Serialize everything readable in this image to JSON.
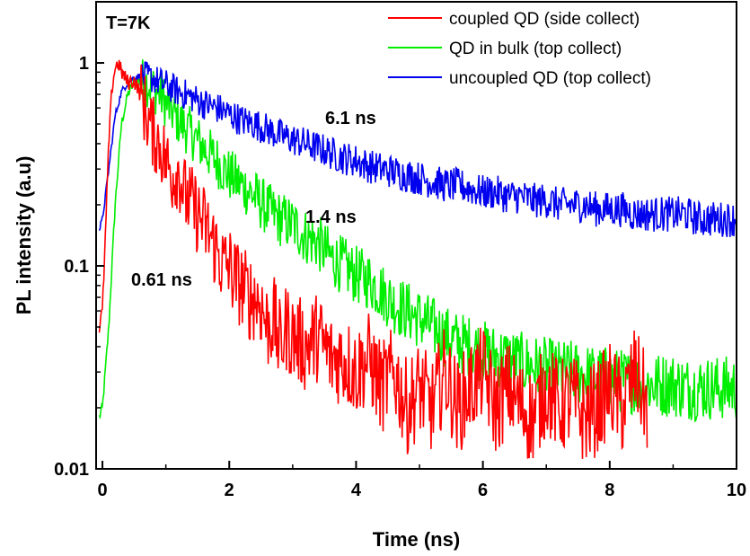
{
  "chart_data": {
    "type": "line",
    "title": "",
    "xlabel": "Time (ns)",
    "ylabel": "PL intensity (a.u)",
    "xlim": [
      -0.1,
      10
    ],
    "ylim": [
      0.01,
      2
    ],
    "yscale": "log",
    "grid": false,
    "legend_position": "top-right",
    "x_ticks": [
      0,
      2,
      4,
      6,
      8,
      10
    ],
    "x_tick_labels": [
      "0",
      "2",
      "4",
      "6",
      "8",
      "10"
    ],
    "y_ticks": [
      0.01,
      0.1,
      1
    ],
    "y_tick_labels": [
      "0.01",
      "0.1",
      "1"
    ],
    "annotations": {
      "temperature": "T=7K",
      "lifetime_blue": "6.1 ns",
      "lifetime_green": "1.4 ns",
      "lifetime_red": "0.61 ns"
    },
    "series": [
      {
        "name": "coupled QD (side collect)",
        "color": "#ff0000",
        "x": [
          -0.05,
          0.0,
          0.05,
          0.1,
          0.15,
          0.2,
          0.25,
          0.3,
          0.35,
          0.4,
          0.5,
          0.6,
          0.7,
          0.8,
          0.9,
          1.0,
          1.1,
          1.2,
          1.3,
          1.4,
          1.5,
          1.6,
          1.7,
          1.8,
          1.9,
          2.0,
          2.1,
          2.2,
          2.3,
          2.4,
          2.5,
          2.6,
          2.7,
          2.8,
          2.9,
          3.0,
          3.2,
          3.4,
          3.6,
          3.8,
          4.0,
          4.2,
          4.4,
          4.6,
          4.8,
          5.0,
          5.2,
          5.4,
          5.6,
          5.8,
          6.0,
          6.2,
          6.4,
          6.6,
          6.8,
          7.0,
          7.2,
          7.4,
          7.6,
          7.8,
          8.0,
          8.2,
          8.4,
          8.6
        ],
        "values": [
          0.05,
          0.06,
          0.15,
          0.4,
          0.75,
          0.95,
          1.0,
          0.9,
          0.85,
          0.8,
          0.82,
          0.7,
          0.55,
          0.45,
          0.4,
          0.33,
          0.28,
          0.3,
          0.22,
          0.2,
          0.18,
          0.16,
          0.14,
          0.12,
          0.1,
          0.1,
          0.085,
          0.08,
          0.07,
          0.07,
          0.065,
          0.05,
          0.055,
          0.04,
          0.05,
          0.045,
          0.04,
          0.045,
          0.035,
          0.035,
          0.03,
          0.035,
          0.025,
          0.03,
          0.02,
          0.025,
          0.02,
          0.03,
          0.02,
          0.025,
          0.03,
          0.02,
          0.025,
          0.02,
          0.018,
          0.025,
          0.02,
          0.022,
          0.018,
          0.02,
          0.025,
          0.02,
          0.03,
          0.02
        ]
      },
      {
        "name": "QD in bulk (top collect)",
        "color": "#00ee00",
        "x": [
          -0.05,
          0.0,
          0.1,
          0.2,
          0.3,
          0.4,
          0.5,
          0.6,
          0.7,
          0.8,
          0.9,
          1.0,
          1.2,
          1.4,
          1.6,
          1.8,
          2.0,
          2.2,
          2.4,
          2.6,
          2.8,
          3.0,
          3.2,
          3.4,
          3.6,
          3.8,
          4.0,
          4.2,
          4.4,
          4.6,
          4.8,
          5.0,
          5.2,
          5.4,
          5.6,
          5.8,
          6.0,
          6.2,
          6.4,
          6.6,
          6.8,
          7.0,
          7.2,
          7.4,
          7.6,
          7.8,
          8.0,
          8.2,
          8.4,
          8.6,
          8.8,
          9.0,
          9.2,
          9.4,
          9.6,
          9.8,
          10.0
        ],
        "values": [
          0.018,
          0.02,
          0.05,
          0.2,
          0.5,
          0.7,
          0.8,
          0.82,
          0.8,
          0.75,
          0.7,
          0.63,
          0.52,
          0.45,
          0.38,
          0.33,
          0.28,
          0.25,
          0.22,
          0.19,
          0.17,
          0.16,
          0.14,
          0.13,
          0.11,
          0.1,
          0.09,
          0.085,
          0.075,
          0.065,
          0.06,
          0.055,
          0.05,
          0.045,
          0.042,
          0.04,
          0.038,
          0.036,
          0.035,
          0.033,
          0.032,
          0.031,
          0.03,
          0.03,
          0.029,
          0.028,
          0.028,
          0.027,
          0.027,
          0.026,
          0.026,
          0.026,
          0.025,
          0.025,
          0.025,
          0.025,
          0.025
        ]
      },
      {
        "name": "uncoupled QD (top collect)",
        "color": "#0000ee",
        "x": [
          -0.05,
          0.0,
          0.1,
          0.2,
          0.3,
          0.4,
          0.5,
          0.6,
          0.7,
          0.8,
          0.9,
          1.0,
          1.2,
          1.4,
          1.6,
          1.8,
          2.0,
          2.2,
          2.4,
          2.6,
          2.8,
          3.0,
          3.2,
          3.4,
          3.6,
          3.8,
          4.0,
          4.2,
          4.4,
          4.6,
          4.8,
          5.0,
          5.2,
          5.4,
          5.6,
          5.8,
          6.0,
          6.2,
          6.4,
          6.6,
          6.8,
          7.0,
          7.2,
          7.4,
          7.6,
          7.8,
          8.0,
          8.2,
          8.4,
          8.6,
          8.8,
          9.0,
          9.2,
          9.4,
          9.6,
          9.8,
          10.0
        ],
        "values": [
          0.15,
          0.17,
          0.3,
          0.55,
          0.72,
          0.8,
          0.85,
          0.86,
          0.85,
          0.84,
          0.8,
          0.78,
          0.72,
          0.68,
          0.63,
          0.6,
          0.56,
          0.52,
          0.5,
          0.47,
          0.44,
          0.42,
          0.4,
          0.38,
          0.36,
          0.34,
          0.33,
          0.31,
          0.3,
          0.29,
          0.28,
          0.27,
          0.26,
          0.25,
          0.25,
          0.24,
          0.23,
          0.23,
          0.22,
          0.22,
          0.21,
          0.21,
          0.2,
          0.2,
          0.2,
          0.19,
          0.19,
          0.19,
          0.18,
          0.18,
          0.18,
          0.18,
          0.18,
          0.17,
          0.17,
          0.17,
          0.17
        ]
      }
    ]
  }
}
